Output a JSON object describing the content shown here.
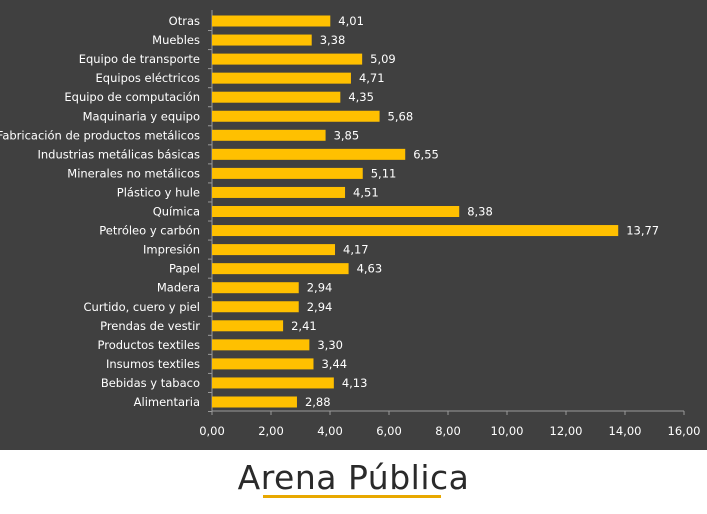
{
  "chart_data": {
    "type": "bar",
    "orientation": "horizontal",
    "categories": [
      "Otras",
      "Muebles",
      "Equipo de transporte",
      "Equipos eléctricos",
      "Equipo de computación",
      "Maquinaria y equipo",
      "Fabricación de productos metálicos",
      "Industrias metálicas básicas",
      "Minerales no metálicos",
      "Plástico y hule",
      "Química",
      "Petróleo y carbón",
      "Impresión",
      "Papel",
      "Madera",
      "Curtido, cuero y piel",
      "Prendas de vestir",
      "Productos textiles",
      "Insumos textiles",
      "Bebidas y tabaco",
      "Alimentaria"
    ],
    "values": [
      4.01,
      3.38,
      5.09,
      4.71,
      4.35,
      5.68,
      3.85,
      6.55,
      5.11,
      4.51,
      8.38,
      13.77,
      4.17,
      4.63,
      2.94,
      2.94,
      2.41,
      3.3,
      3.44,
      4.13,
      2.88
    ],
    "value_labels": [
      "4,01",
      "3,38",
      "5,09",
      "4,71",
      "4,35",
      "5,68",
      "3,85",
      "6,55",
      "5,11",
      "4,51",
      "8,38",
      "13,77",
      "4,17",
      "4,63",
      "2,94",
      "2,94",
      "2,41",
      "3,30",
      "3,44",
      "4,13",
      "2,88"
    ],
    "xlim": [
      0,
      16
    ],
    "x_ticks": [
      0,
      2,
      4,
      6,
      8,
      10,
      12,
      14,
      16
    ],
    "x_tick_labels": [
      "0,00",
      "2,00",
      "4,00",
      "6,00",
      "8,00",
      "10,00",
      "12,00",
      "14,00",
      "16,00"
    ],
    "title": "",
    "xlabel": "",
    "ylabel": "",
    "grid": false,
    "legend": "none",
    "colors": {
      "bar": "#FFC000",
      "background": "#404040",
      "text": "#ffffff",
      "axis": "#9a9a9a"
    }
  },
  "footer": {
    "logo_text": "Arena Pública",
    "logo_underline_color": "#E8A800"
  }
}
